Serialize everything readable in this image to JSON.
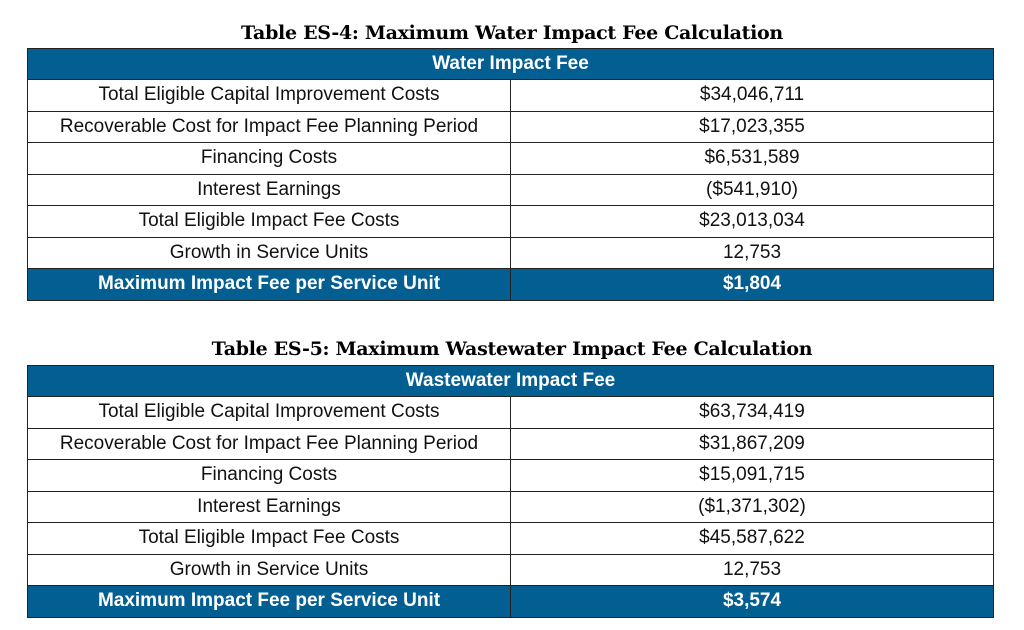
{
  "tables": [
    {
      "title": "Table ES-4: Maximum Water Impact Fee Calculation",
      "header": "Water Impact Fee",
      "rows": [
        {
          "label": "Total Eligible Capital Improvement Costs",
          "value": "$34,046,711"
        },
        {
          "label": "Recoverable Cost for Impact Fee Planning Period",
          "value": "$17,023,355"
        },
        {
          "label": "Financing Costs",
          "value": "$6,531,589"
        },
        {
          "label": "Interest Earnings",
          "value": "($541,910)"
        },
        {
          "label": "Total Eligible Impact Fee Costs",
          "value": "$23,013,034"
        },
        {
          "label": "Growth in Service Units",
          "value": "12,753"
        }
      ],
      "total": {
        "label": "Maximum Impact Fee per Service Unit",
        "value": "$1,804"
      }
    },
    {
      "title": "Table ES-5: Maximum Wastewater Impact Fee Calculation",
      "header": "Wastewater Impact Fee",
      "rows": [
        {
          "label": "Total Eligible Capital Improvement Costs",
          "value": "$63,734,419"
        },
        {
          "label": "Recoverable Cost for Impact Fee Planning Period",
          "value": "$31,867,209"
        },
        {
          "label": "Financing Costs",
          "value": "$15,091,715"
        },
        {
          "label": "Interest Earnings",
          "value": "($1,371,302)"
        },
        {
          "label": "Total Eligible Impact Fee Costs",
          "value": "$45,587,622"
        },
        {
          "label": "Growth in Service Units",
          "value": "12,753"
        }
      ],
      "total": {
        "label": "Maximum Impact Fee per Service Unit",
        "value": "$3,574"
      }
    }
  ],
  "colors": {
    "header_bg": "#035e92",
    "header_text": "#ffffff"
  }
}
